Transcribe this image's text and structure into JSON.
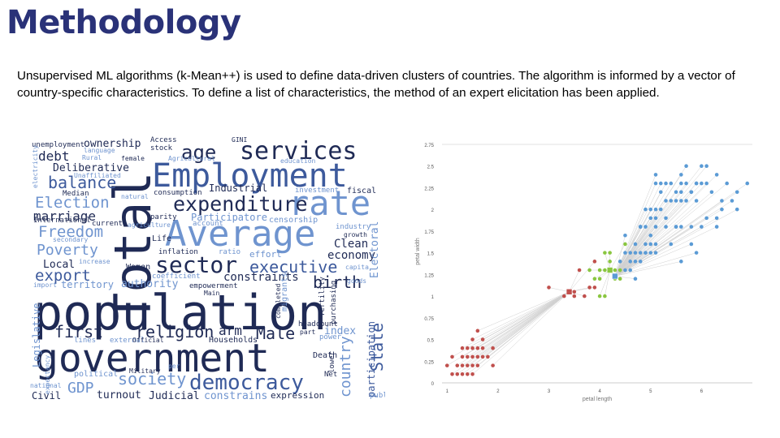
{
  "slide": {
    "title": "Methodology",
    "description": "Unsupervised ML algorithms (k-Mean++) is used to define data-driven clusters of countries. The algorithm is informed by a vector of country-specific characteristics. To define a list of characteristics, the method of an expert elicitation has been applied."
  },
  "wordcloud": {
    "colors": {
      "navy": "#1f2a55",
      "mid": "#3d5a9c",
      "light": "#6f94cf",
      "pale": "#a9c2e6"
    },
    "words": [
      {
        "text": "population",
        "color": "navy"
      },
      {
        "text": "government",
        "color": "navy"
      },
      {
        "text": "Total",
        "color": "navy"
      },
      {
        "text": "Employment",
        "color": "mid"
      },
      {
        "text": "Average",
        "color": "light"
      },
      {
        "text": "rate",
        "color": "light"
      },
      {
        "text": "services",
        "color": "navy"
      },
      {
        "text": "expenditure",
        "color": "navy"
      },
      {
        "text": "sector",
        "color": "navy"
      },
      {
        "text": "democracy",
        "color": "mid"
      },
      {
        "text": "age",
        "color": "navy"
      },
      {
        "text": "balance",
        "color": "mid"
      },
      {
        "text": "Election",
        "color": "light"
      },
      {
        "text": "Freedom",
        "color": "light"
      },
      {
        "text": "Poverty",
        "color": "light"
      },
      {
        "text": "export",
        "color": "mid"
      },
      {
        "text": "executive",
        "color": "mid"
      },
      {
        "text": "birth",
        "color": "navy"
      },
      {
        "text": "religion",
        "color": "navy"
      },
      {
        "text": "first",
        "color": "navy"
      },
      {
        "text": "society",
        "color": "light"
      },
      {
        "text": "Male",
        "color": "navy"
      },
      {
        "text": "debt",
        "color": "navy"
      },
      {
        "text": "marriage",
        "color": "navy"
      },
      {
        "text": "Participatore",
        "color": "light"
      },
      {
        "text": "authority",
        "color": "light"
      },
      {
        "text": "constraints",
        "color": "navy"
      },
      {
        "text": "Clean",
        "color": "navy"
      },
      {
        "text": "economy",
        "color": "navy"
      },
      {
        "text": "Deliberative",
        "color": "navy"
      },
      {
        "text": "ownership",
        "color": "navy"
      },
      {
        "text": "Local",
        "color": "navy"
      },
      {
        "text": "territory",
        "color": "light"
      },
      {
        "text": "Industrial",
        "color": "navy"
      },
      {
        "text": "GDP",
        "color": "light"
      },
      {
        "text": "turnout",
        "color": "navy"
      },
      {
        "text": "Judicial",
        "color": "navy"
      },
      {
        "text": "constrains",
        "color": "light"
      },
      {
        "text": "expression",
        "color": "navy"
      },
      {
        "text": "Civil",
        "color": "navy"
      },
      {
        "text": "arm",
        "color": "navy"
      },
      {
        "text": "index",
        "color": "light"
      },
      {
        "text": "State",
        "color": "mid"
      },
      {
        "text": "country",
        "color": "light"
      },
      {
        "text": "participation",
        "color": "mid"
      },
      {
        "text": "Electoral",
        "color": "light"
      },
      {
        "text": "Legislative",
        "color": "light"
      },
      {
        "text": "Women",
        "color": "navy"
      },
      {
        "text": "effort",
        "color": "light"
      },
      {
        "text": "Households",
        "color": "navy"
      },
      {
        "text": "Life",
        "color": "navy"
      },
      {
        "text": "inflation",
        "color": "navy"
      },
      {
        "text": "ratio",
        "color": "light"
      },
      {
        "text": "empowerment",
        "color": "navy"
      },
      {
        "text": "coefficient",
        "color": "light"
      },
      {
        "text": "censorship",
        "color": "light"
      },
      {
        "text": "consumption",
        "color": "navy"
      },
      {
        "text": "investment",
        "color": "light"
      },
      {
        "text": "fiscal",
        "color": "navy"
      },
      {
        "text": "industry",
        "color": "light"
      },
      {
        "text": "growth",
        "color": "navy"
      },
      {
        "text": "capita",
        "color": "light"
      },
      {
        "text": "goods",
        "color": "light"
      },
      {
        "text": "parity",
        "color": "navy"
      },
      {
        "text": "account",
        "color": "light"
      },
      {
        "text": "agriculture",
        "color": "light"
      },
      {
        "text": "current",
        "color": "navy"
      },
      {
        "text": "natural",
        "color": "light"
      },
      {
        "text": "Median",
        "color": "navy"
      },
      {
        "text": "International",
        "color": "navy"
      },
      {
        "text": "secondary",
        "color": "light"
      },
      {
        "text": "increase",
        "color": "light"
      },
      {
        "text": "import",
        "color": "light"
      },
      {
        "text": "Unaffiliated",
        "color": "light"
      },
      {
        "text": "Rural",
        "color": "light"
      },
      {
        "text": "language",
        "color": "light"
      },
      {
        "text": "unemployment",
        "color": "navy"
      },
      {
        "text": "electricity",
        "color": "light"
      },
      {
        "text": "Access",
        "color": "navy"
      },
      {
        "text": "stock",
        "color": "navy"
      },
      {
        "text": "female",
        "color": "navy"
      },
      {
        "text": "Agricultural",
        "color": "light"
      },
      {
        "text": "GINI",
        "color": "navy"
      },
      {
        "text": "education",
        "color": "light"
      },
      {
        "text": "migrants",
        "color": "light"
      },
      {
        "text": "purchasing",
        "color": "navy"
      },
      {
        "text": "fertility",
        "color": "navy"
      },
      {
        "text": "headcount",
        "color": "navy"
      },
      {
        "text": "part",
        "color": "navy"
      },
      {
        "text": "power",
        "color": "light"
      },
      {
        "text": "lower",
        "color": "navy"
      },
      {
        "text": "Net",
        "color": "navy"
      },
      {
        "text": "Death",
        "color": "navy"
      },
      {
        "text": "public",
        "color": "light"
      },
      {
        "text": "political",
        "color": "light"
      },
      {
        "text": "Military",
        "color": "navy"
      },
      {
        "text": "external",
        "color": "light"
      },
      {
        "text": "lines",
        "color": "light"
      },
      {
        "text": "Official",
        "color": "navy"
      },
      {
        "text": "per",
        "color": "light"
      },
      {
        "text": "Main",
        "color": "navy"
      },
      {
        "text": "completed",
        "color": "navy"
      },
      {
        "text": "expectancy",
        "color": "light"
      },
      {
        "text": "national",
        "color": "light"
      }
    ]
  },
  "chart_data": {
    "type": "scatter",
    "xlabel": "petal length",
    "ylabel": "petal width",
    "xlim": [
      0.9,
      7.0
    ],
    "ylim": [
      0,
      2.75
    ],
    "x_ticks": [
      "1",
      "2",
      "3",
      "4",
      "5",
      "6"
    ],
    "y_ticks": [
      "0",
      "0.25",
      "0.5",
      "0.75",
      "1",
      "1.25",
      "1.5",
      "1.75",
      "2",
      "2.25",
      "2.5",
      "2.75"
    ],
    "grid": false,
    "series": [
      {
        "color": "#c0504d",
        "centroid": [
          3.4,
          1.05
        ],
        "points": [
          [
            1.4,
            0.2
          ],
          [
            1.3,
            0.2
          ],
          [
            1.5,
            0.2
          ],
          [
            1.4,
            0.3
          ],
          [
            1.7,
            0.4
          ],
          [
            1.1,
            0.1
          ],
          [
            1.2,
            0.2
          ],
          [
            1.5,
            0.4
          ],
          [
            1.3,
            0.4
          ],
          [
            1.6,
            0.2
          ],
          [
            1.9,
            0.4
          ],
          [
            1.6,
            0.6
          ],
          [
            1.0,
            0.2
          ],
          [
            1.7,
            0.5
          ],
          [
            1.5,
            0.1
          ],
          [
            1.4,
            0.1
          ],
          [
            1.2,
            0.1
          ],
          [
            1.6,
            0.4
          ],
          [
            1.5,
            0.3
          ],
          [
            1.3,
            0.3
          ],
          [
            1.7,
            0.3
          ],
          [
            1.4,
            0.4
          ],
          [
            1.6,
            0.3
          ],
          [
            1.9,
            0.2
          ],
          [
            1.5,
            0.5
          ],
          [
            1.8,
            0.3
          ],
          [
            1.1,
            0.3
          ],
          [
            1.3,
            0.1
          ],
          [
            3.0,
            1.1
          ],
          [
            3.3,
            1.0
          ],
          [
            3.5,
            1.0
          ],
          [
            3.6,
            1.3
          ],
          [
            3.9,
            1.1
          ],
          [
            3.7,
            1.0
          ],
          [
            3.8,
            1.1
          ],
          [
            3.9,
            1.4
          ],
          [
            3.5,
            1.05
          ]
        ]
      },
      {
        "color": "#8ac640",
        "centroid": [
          4.2,
          1.3
        ],
        "points": [
          [
            4.0,
            1.3
          ],
          [
            3.9,
            1.2
          ],
          [
            4.1,
            1.3
          ],
          [
            4.0,
            1.0
          ],
          [
            4.2,
            1.4
          ],
          [
            4.4,
            1.2
          ],
          [
            4.2,
            1.5
          ],
          [
            4.0,
            1.2
          ],
          [
            4.1,
            1.5
          ],
          [
            4.3,
            1.3
          ],
          [
            3.8,
            1.3
          ],
          [
            4.4,
            1.3
          ],
          [
            4.5,
            1.6
          ],
          [
            4.1,
            1.0
          ],
          [
            4.3,
            1.2
          ]
        ]
      },
      {
        "color": "#5b9bd5",
        "centroid": [
          4.3,
          1.23
        ],
        "points": [
          [
            4.5,
            1.5
          ],
          [
            4.7,
            1.4
          ],
          [
            4.9,
            1.5
          ],
          [
            4.6,
            1.5
          ],
          [
            4.7,
            1.6
          ],
          [
            4.8,
            1.8
          ],
          [
            5.0,
            1.7
          ],
          [
            4.5,
            1.3
          ],
          [
            4.6,
            1.3
          ],
          [
            4.7,
            1.2
          ],
          [
            4.4,
            1.4
          ],
          [
            4.8,
            1.4
          ],
          [
            4.9,
            1.5
          ],
          [
            4.5,
            1.7
          ],
          [
            5.1,
            1.9
          ],
          [
            5.6,
            2.1
          ],
          [
            5.8,
            2.2
          ],
          [
            6.6,
            2.1
          ],
          [
            5.9,
            2.3
          ],
          [
            6.1,
            2.5
          ],
          [
            5.1,
            2.0
          ],
          [
            5.3,
            1.9
          ],
          [
            5.5,
            2.1
          ],
          [
            5.0,
            2.0
          ],
          [
            5.1,
            2.4
          ],
          [
            5.3,
            2.3
          ],
          [
            5.5,
            1.8
          ],
          [
            6.7,
            2.2
          ],
          [
            6.9,
            2.3
          ],
          [
            5.7,
            2.3
          ],
          [
            4.9,
            2.0
          ],
          [
            6.7,
            2.0
          ],
          [
            5.7,
            2.1
          ],
          [
            6.0,
            1.8
          ],
          [
            4.8,
            1.8
          ],
          [
            5.8,
            1.6
          ],
          [
            6.1,
            1.9
          ],
          [
            6.4,
            2.0
          ],
          [
            5.6,
            2.2
          ],
          [
            5.1,
            1.5
          ],
          [
            5.6,
            1.4
          ],
          [
            6.1,
            2.3
          ],
          [
            5.5,
            1.8
          ],
          [
            4.8,
            1.8
          ],
          [
            5.4,
            2.1
          ],
          [
            5.6,
            2.4
          ],
          [
            5.1,
            2.3
          ],
          [
            5.9,
            2.3
          ],
          [
            5.7,
            2.5
          ],
          [
            5.2,
            2.3
          ],
          [
            5.0,
            1.9
          ],
          [
            5.2,
            2.0
          ],
          [
            5.4,
            2.3
          ],
          [
            5.1,
            1.8
          ],
          [
            5.3,
            2.1
          ],
          [
            6.3,
            1.8
          ],
          [
            6.0,
            2.5
          ],
          [
            5.8,
            1.8
          ],
          [
            5.0,
            1.5
          ],
          [
            4.6,
            1.4
          ],
          [
            4.7,
            1.5
          ],
          [
            5.5,
            2.2
          ],
          [
            6.0,
            2.3
          ],
          [
            6.3,
            1.9
          ],
          [
            5.9,
            2.1
          ],
          [
            5.6,
            1.8
          ],
          [
            5.3,
            1.8
          ],
          [
            4.9,
            1.8
          ],
          [
            5.8,
            2.2
          ],
          [
            6.5,
            2.3
          ],
          [
            4.8,
            1.5
          ],
          [
            5.2,
            2.2
          ],
          [
            5.4,
            1.6
          ],
          [
            5.0,
            1.6
          ],
          [
            5.1,
            1.6
          ],
          [
            4.9,
            1.6
          ],
          [
            6.2,
            2.2
          ],
          [
            6.4,
            2.1
          ],
          [
            5.9,
            1.5
          ],
          [
            5.6,
            2.3
          ],
          [
            6.3,
            2.4
          ]
        ]
      }
    ]
  }
}
